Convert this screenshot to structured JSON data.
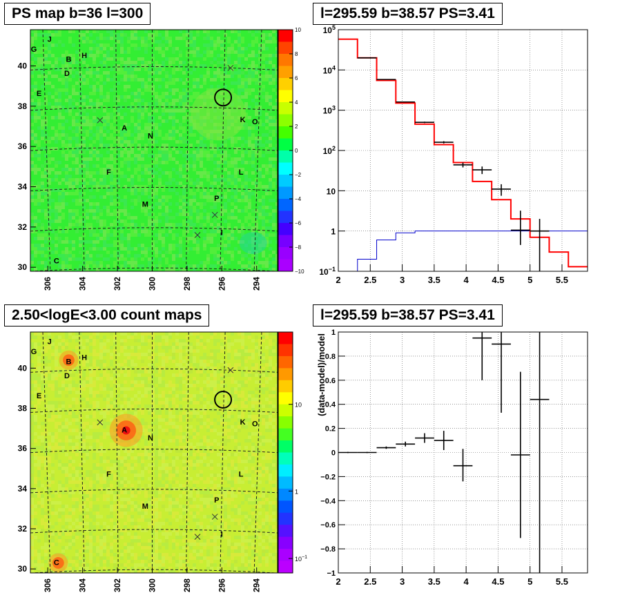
{
  "panels": {
    "top_left_title": "PS map b=36 l=300",
    "top_right_title": "l=295.59 b=38.57 PS=3.41",
    "bottom_left_title": "2.50<logE<3.00 count maps",
    "bottom_right_title": "l=295.59 b=38.57 PS=3.41"
  },
  "colors": {
    "data": "#000000",
    "model": "#ff0000",
    "background_model": "#0000cc",
    "ps_map_fill": "#33ee33",
    "count_map_fill": "#c8ee33"
  },
  "chart_data": [
    {
      "type": "heatmap",
      "name_in_image": "PS map",
      "xlabel": "",
      "ylabel": "",
      "x_ticks": [
        "306",
        "304",
        "302",
        "300",
        "298",
        "296",
        "294"
      ],
      "y_ticks": [
        "30",
        "32",
        "34",
        "36",
        "38",
        "40"
      ],
      "xlim": [
        307,
        292.8
      ],
      "ylim": [
        29.8,
        41.8
      ],
      "colorbar": {
        "min": -10,
        "max": 10,
        "ticks": [
          "10",
          "8",
          "6",
          "4",
          "2",
          "0",
          "−2",
          "−4",
          "−6",
          "−8",
          "−10"
        ]
      },
      "source_labels": [
        {
          "label": "J",
          "l": 305.9,
          "b": 41.3
        },
        {
          "label": "G",
          "l": 306.8,
          "b": 40.8
        },
        {
          "label": "B",
          "l": 304.8,
          "b": 40.3
        },
        {
          "label": "H",
          "l": 303.9,
          "b": 40.5
        },
        {
          "label": "D",
          "l": 304.9,
          "b": 39.6
        },
        {
          "label": "E",
          "l": 306.5,
          "b": 38.6
        },
        {
          "label": "A",
          "l": 301.6,
          "b": 36.9
        },
        {
          "label": "N",
          "l": 300.1,
          "b": 36.5
        },
        {
          "label": "K",
          "l": 294.8,
          "b": 37.3
        },
        {
          "label": "O",
          "l": 294.1,
          "b": 37.2
        },
        {
          "label": "F",
          "l": 302.5,
          "b": 34.7
        },
        {
          "label": "L",
          "l": 294.9,
          "b": 34.7
        },
        {
          "label": "M",
          "l": 300.4,
          "b": 33.1
        },
        {
          "label": "P",
          "l": 296.3,
          "b": 33.4
        },
        {
          "label": "I",
          "l": 296.0,
          "b": 31.7
        },
        {
          "label": "C",
          "l": 305.5,
          "b": 30.3
        }
      ],
      "crosses": [
        {
          "l": 303.0,
          "b": 37.3
        },
        {
          "l": 295.5,
          "b": 39.9
        },
        {
          "l": 296.4,
          "b": 32.6
        },
        {
          "l": 297.4,
          "b": 31.6
        }
      ],
      "circle": {
        "l": 295.93,
        "b": 38.43,
        "r_deg": 0.5
      }
    },
    {
      "type": "line",
      "xlabel": "",
      "ylabel": "",
      "log_y": true,
      "xlim": [
        2.0,
        5.9
      ],
      "ylim": [
        0.1,
        100000
      ],
      "x_ticks": [
        "2",
        "2.5",
        "3",
        "3.5",
        "4",
        "4.5",
        "5",
        "5.5"
      ],
      "y_ticks": [
        "10^-1",
        "1",
        "10",
        "10^2",
        "10^3",
        "10^4",
        "10^5"
      ],
      "grid": true,
      "series": [
        {
          "style": "histogram",
          "bin_edges": [
            2.0,
            2.3,
            2.6,
            2.9,
            3.2,
            3.5,
            3.8,
            4.1,
            4.4,
            4.7,
            5.0,
            5.3,
            5.6,
            5.9
          ],
          "values": [
            58000,
            20000,
            5500,
            1500,
            450,
            140,
            50,
            17,
            6,
            2,
            0.7,
            0.3,
            0.13
          ]
        },
        {
          "style": "histogram",
          "bin_edges": [
            2.0,
            2.3,
            2.6,
            2.9,
            3.2,
            3.5,
            3.8,
            4.1,
            4.4,
            4.7,
            5.0,
            5.3,
            5.6,
            5.9
          ],
          "values": [
            0.08,
            0.2,
            0.6,
            0.9,
            1.0,
            1.0,
            1.0,
            1.0,
            1.0,
            1.0,
            1.0,
            1.0,
            1.0
          ]
        },
        {
          "style": "points",
          "x": [
            2.45,
            2.75,
            3.05,
            3.35,
            3.65,
            3.95,
            4.25,
            4.55,
            4.85,
            5.15
          ],
          "y": [
            20000,
            5800,
            1600,
            500,
            160,
            44,
            33,
            11,
            1.05,
            1.0
          ],
          "yerr_low": [
            19800,
            5700,
            1560,
            480,
            150,
            38,
            26,
            7.5,
            0.45,
            0.09
          ],
          "yerr_high": [
            20200,
            5900,
            1640,
            520,
            170,
            50,
            40,
            14.5,
            3.2,
            2.0
          ]
        }
      ]
    },
    {
      "type": "heatmap",
      "name_in_image": "count maps",
      "xlabel": "",
      "ylabel": "",
      "x_ticks": [
        "306",
        "304",
        "302",
        "300",
        "298",
        "296",
        "294"
      ],
      "y_ticks": [
        "30",
        "32",
        "34",
        "36",
        "38",
        "40"
      ],
      "xlim": [
        307,
        292.8
      ],
      "ylim": [
        29.8,
        41.8
      ],
      "colorbar": {
        "scale": "log",
        "ticks": [
          "10",
          "1",
          "10^-1"
        ]
      },
      "source_labels": [
        {
          "label": "J",
          "l": 305.9,
          "b": 41.3
        },
        {
          "label": "G",
          "l": 306.8,
          "b": 40.8
        },
        {
          "label": "B",
          "l": 304.8,
          "b": 40.3
        },
        {
          "label": "H",
          "l": 303.9,
          "b": 40.5
        },
        {
          "label": "D",
          "l": 304.9,
          "b": 39.6
        },
        {
          "label": "E",
          "l": 306.5,
          "b": 38.6
        },
        {
          "label": "A",
          "l": 301.6,
          "b": 36.9
        },
        {
          "label": "N",
          "l": 300.1,
          "b": 36.5
        },
        {
          "label": "K",
          "l": 294.8,
          "b": 37.3
        },
        {
          "label": "O",
          "l": 294.1,
          "b": 37.2
        },
        {
          "label": "F",
          "l": 302.5,
          "b": 34.7
        },
        {
          "label": "L",
          "l": 294.9,
          "b": 34.7
        },
        {
          "label": "M",
          "l": 300.4,
          "b": 33.1
        },
        {
          "label": "P",
          "l": 296.3,
          "b": 33.4
        },
        {
          "label": "I",
          "l": 296.0,
          "b": 31.7
        },
        {
          "label": "C",
          "l": 305.5,
          "b": 30.3
        }
      ],
      "crosses": [
        {
          "l": 303.0,
          "b": 37.3
        },
        {
          "l": 295.5,
          "b": 39.9
        },
        {
          "l": 296.4,
          "b": 32.6
        },
        {
          "l": 297.4,
          "b": 31.6
        }
      ],
      "circle": {
        "l": 295.93,
        "b": 38.43,
        "r_deg": 0.5
      },
      "hotspots": [
        {
          "l": 301.5,
          "b": 36.9,
          "label": "A"
        },
        {
          "l": 304.8,
          "b": 40.4,
          "label": "B"
        },
        {
          "l": 305.4,
          "b": 30.3,
          "label": "C"
        }
      ]
    },
    {
      "type": "scatter",
      "xlabel": "",
      "ylabel": "(data-model)/model",
      "xlim": [
        2.0,
        5.9
      ],
      "ylim": [
        -1,
        1
      ],
      "x_ticks": [
        "2",
        "2.5",
        "3",
        "3.5",
        "4",
        "4.5",
        "5",
        "5.5"
      ],
      "y_ticks": [
        "−1",
        "−0.8",
        "−0.6",
        "−0.4",
        "−0.2",
        "0",
        "0.2",
        "0.4",
        "0.6",
        "0.8",
        "1"
      ],
      "grid": true,
      "points": [
        {
          "x": 2.15,
          "y": 0.0,
          "ylo": -0.005,
          "yhi": 0.005
        },
        {
          "x": 2.45,
          "y": 0.0,
          "ylo": -0.005,
          "yhi": 0.005
        },
        {
          "x": 2.75,
          "y": 0.04,
          "ylo": 0.03,
          "yhi": 0.05
        },
        {
          "x": 3.05,
          "y": 0.07,
          "ylo": 0.05,
          "yhi": 0.09
        },
        {
          "x": 3.35,
          "y": 0.12,
          "ylo": 0.08,
          "yhi": 0.16
        },
        {
          "x": 3.65,
          "y": 0.1,
          "ylo": 0.02,
          "yhi": 0.18
        },
        {
          "x": 3.95,
          "y": -0.11,
          "ylo": -0.24,
          "yhi": 0.03
        },
        {
          "x": 4.25,
          "y": 0.95,
          "ylo": 0.6,
          "yhi": 1.0
        },
        {
          "x": 4.55,
          "y": 0.9,
          "ylo": 0.33,
          "yhi": 1.0
        },
        {
          "x": 4.85,
          "y": -0.02,
          "ylo": -0.71,
          "yhi": 0.67
        },
        {
          "x": 5.15,
          "y": 0.44,
          "ylo": -1.0,
          "yhi": 1.0
        }
      ]
    }
  ]
}
